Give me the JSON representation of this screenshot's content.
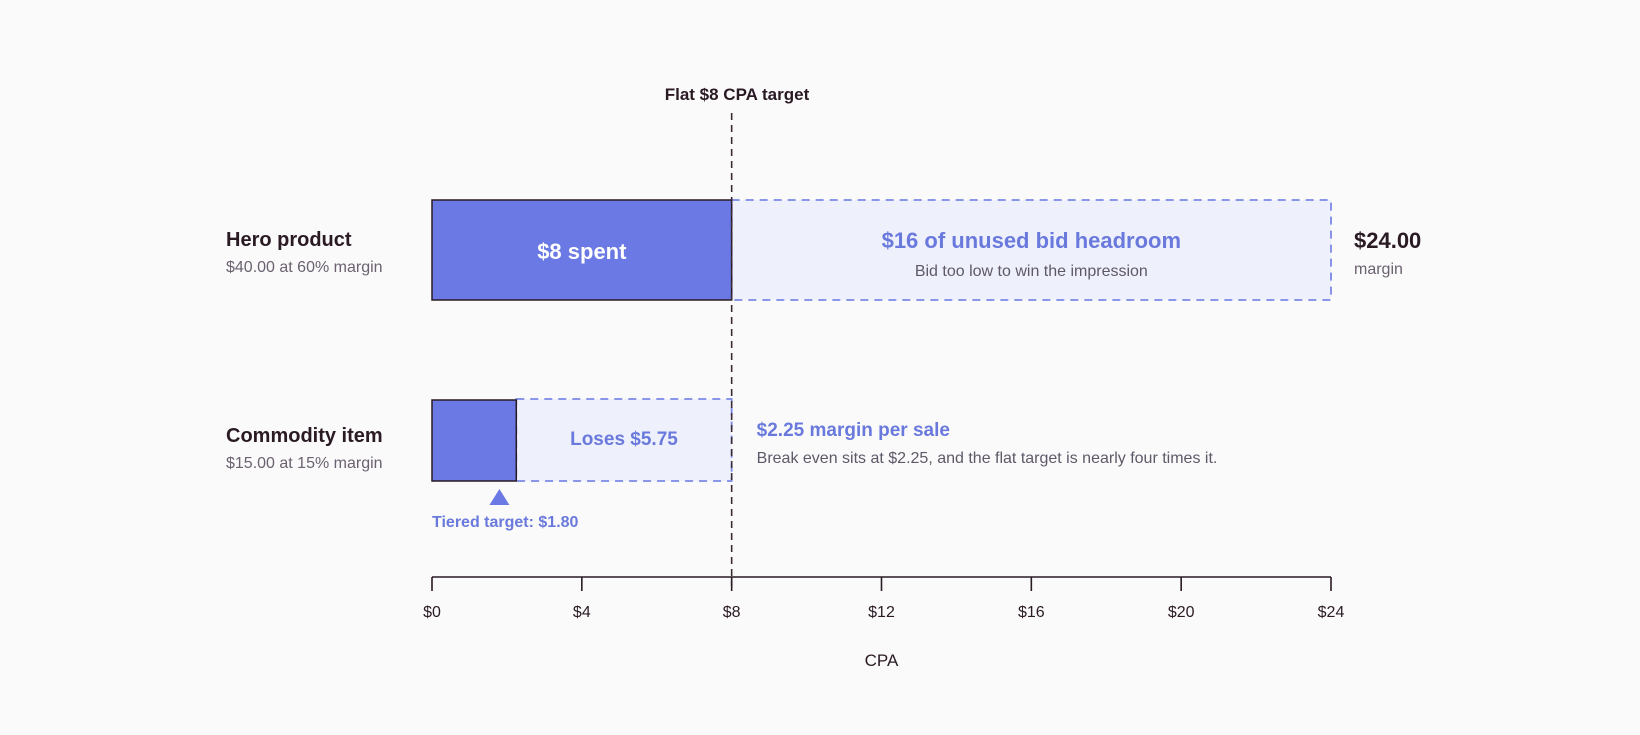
{
  "chart_data": {
    "type": "bar",
    "orientation": "horizontal",
    "xlabel": "CPA",
    "xlim": [
      0,
      24
    ],
    "x_ticks": [
      0,
      4,
      8,
      12,
      16,
      20,
      24
    ],
    "x_tick_labels": [
      "$0",
      "$4",
      "$8",
      "$12",
      "$16",
      "$20",
      "$24"
    ],
    "grid": false,
    "reference_line": {
      "value": 8,
      "label": "Flat $8 CPA target"
    },
    "rows": [
      {
        "label": "Hero product",
        "sublabel": "$40.00 at 60% margin",
        "spent": 8,
        "margin": 24,
        "spent_label": "$8 spent",
        "gap_title": "$16 of unused bid headroom",
        "gap_subtitle": "Bid too low to win the impression",
        "margin_value_label": "$24.00",
        "margin_caption": "margin"
      },
      {
        "label": "Commodity item",
        "sublabel": "$15.00 at 15% margin",
        "spent": 2.25,
        "margin": 2.25,
        "overspend_end": 8,
        "gap_label": "Loses $5.75",
        "note_title": "$2.25 margin per sale",
        "note_subtitle": "Break even sits at $2.25, and the flat target is nearly four times it.",
        "tiered_target": 1.8,
        "tiered_target_label": "Tiered target: $1.80"
      }
    ],
    "colors": {
      "solid": "#6a79e3",
      "light": "#eef0fc",
      "dashed_border": "#7b89e6",
      "accent_text": "#6a79dc",
      "ink": "#2a1a24",
      "muted": "#6b6170"
    }
  }
}
